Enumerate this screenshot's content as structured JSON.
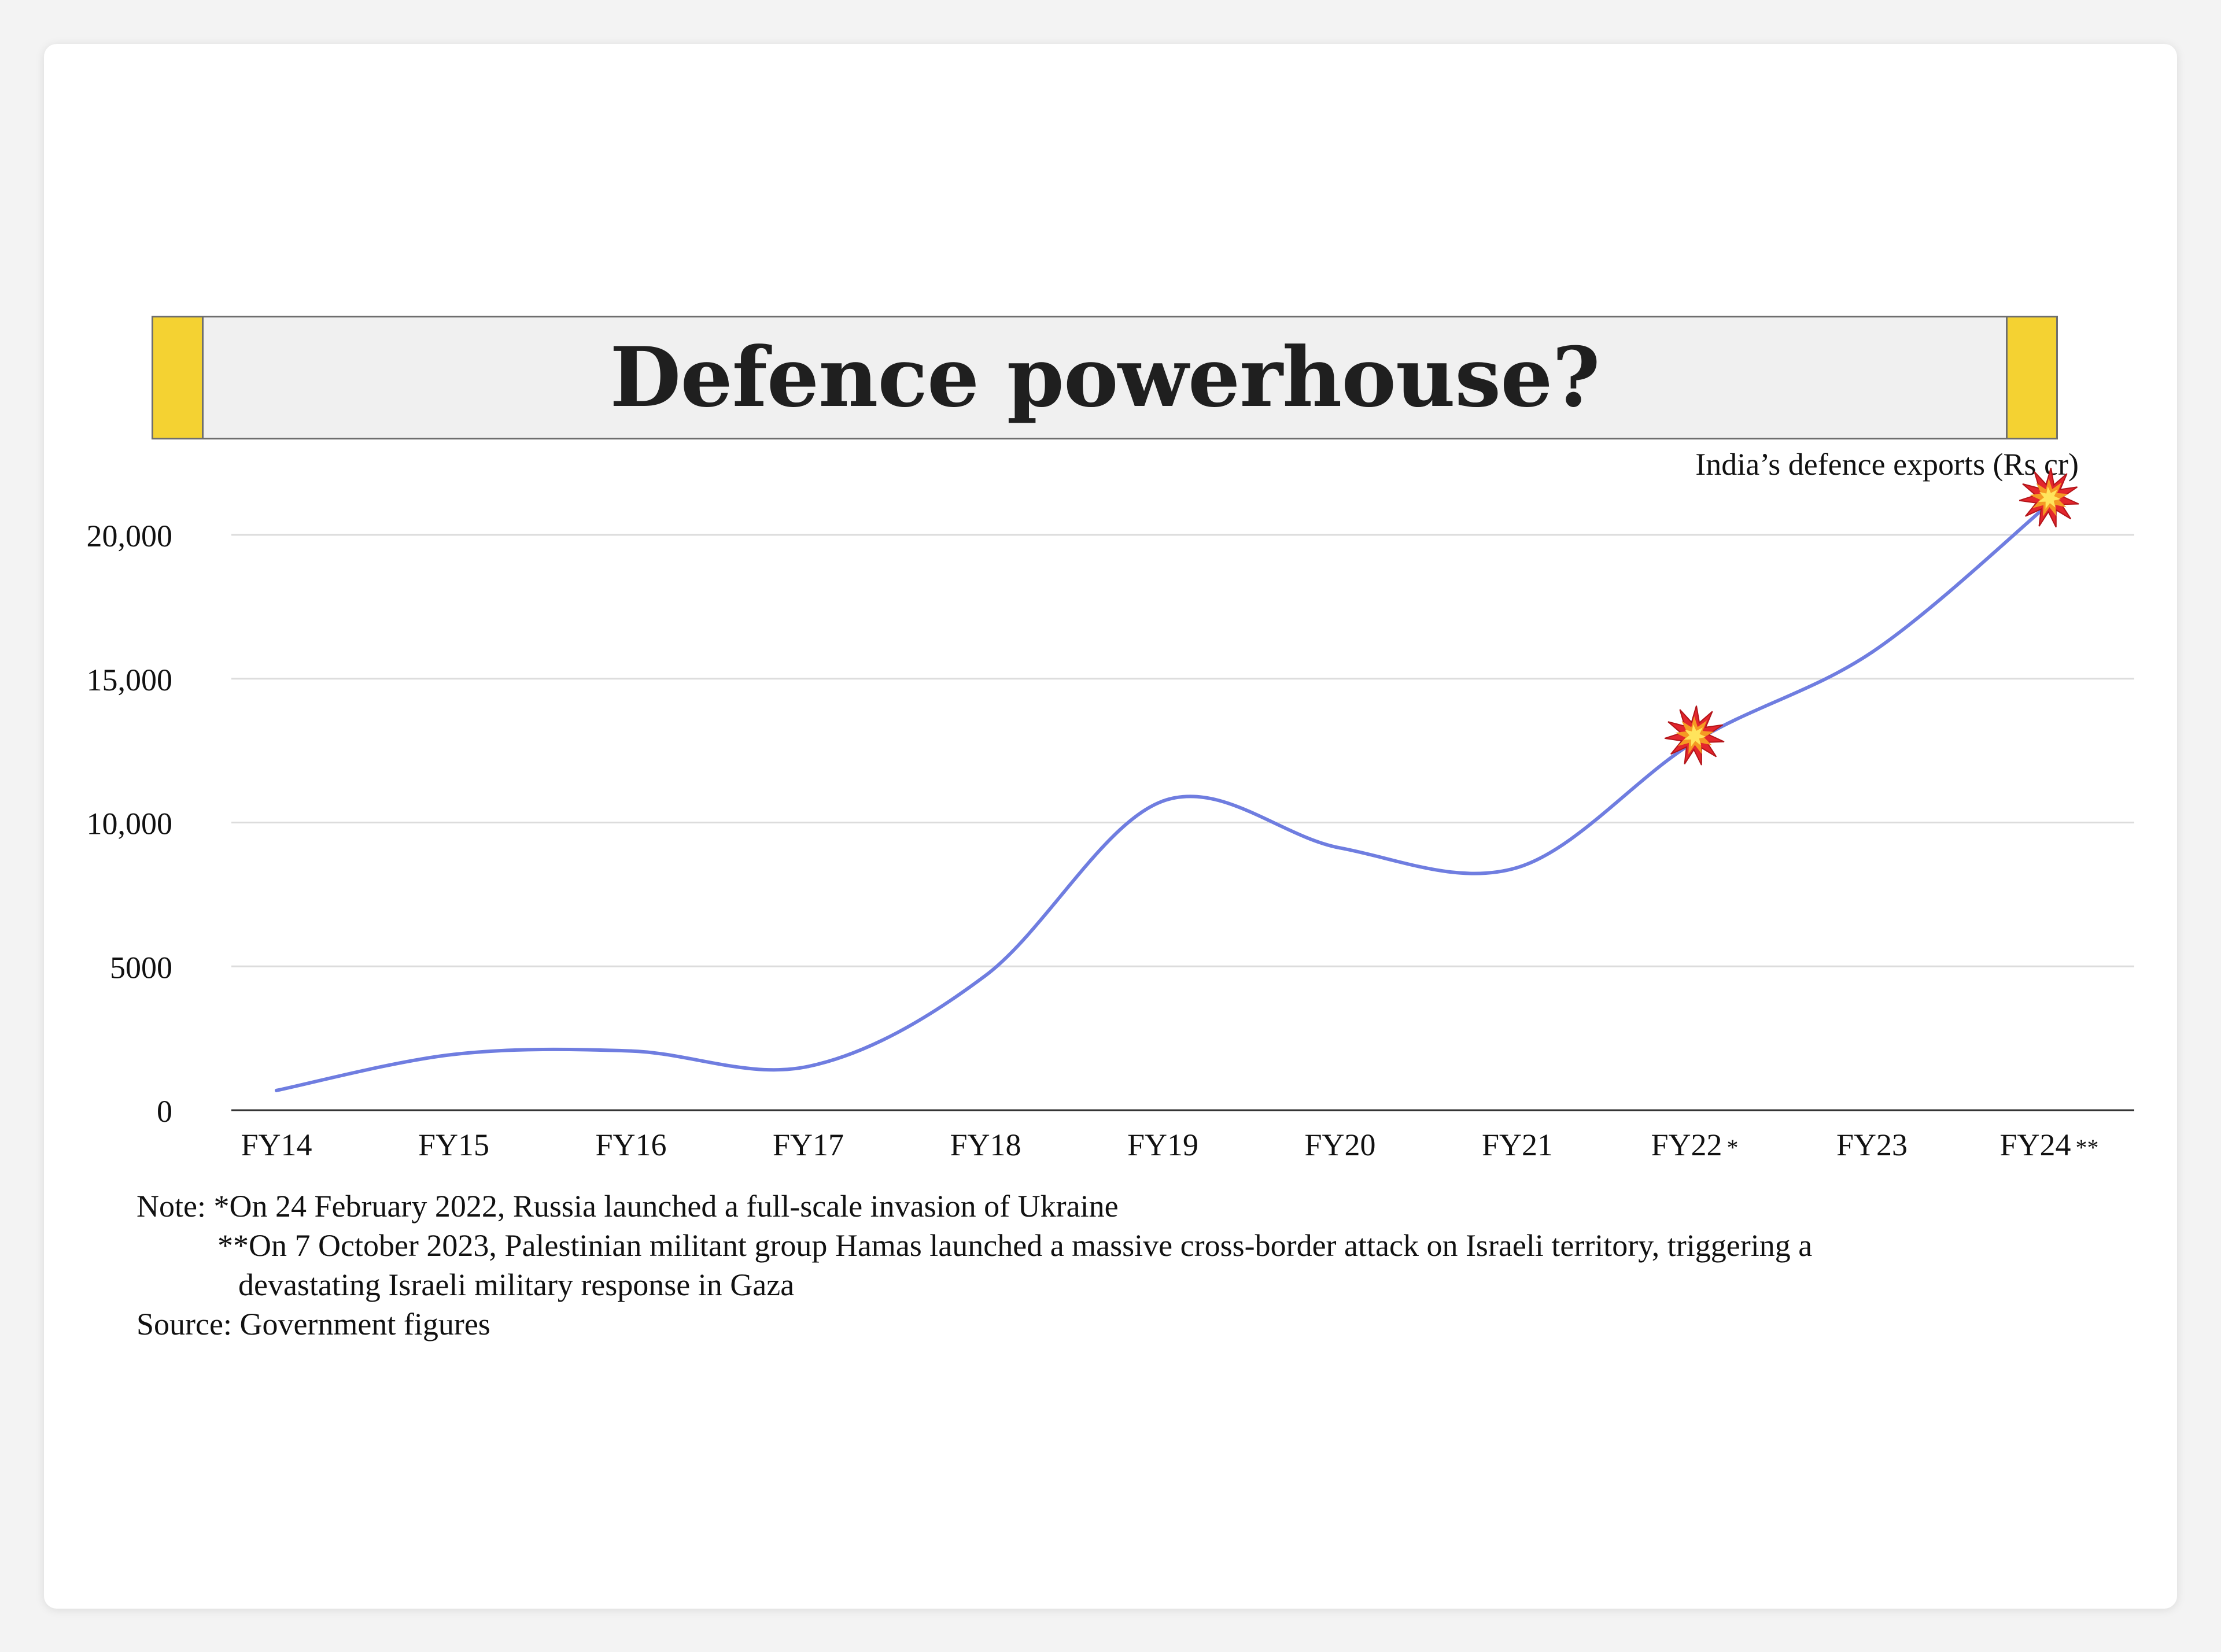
{
  "title": "Defence powerhouse?",
  "colors": {
    "line": "#6f7de0",
    "tab": "#f4d232",
    "grid": "#dcdcdc",
    "axis": "#333333"
  },
  "chart_data": {
    "type": "line",
    "title": "Defence powerhouse?",
    "ylabel": "India’s defence exports (Rs cr)",
    "xlabel": "",
    "categories": [
      "FY14",
      "FY15",
      "FY16",
      "FY17",
      "FY18",
      "FY19",
      "FY20",
      "FY21",
      "FY22",
      "FY23",
      "FY24"
    ],
    "category_suffixes": [
      "",
      "",
      "",
      "",
      "",
      "",
      "",
      "",
      "*",
      "",
      "**"
    ],
    "values": [
      686,
      1940,
      2059,
      1521,
      4682,
      10746,
      9116,
      8435,
      12815,
      15920,
      21083
    ],
    "yticks": [
      "0",
      "5000",
      "10,000",
      "15,000",
      "20,000"
    ],
    "ytick_values": [
      0,
      5000,
      10000,
      15000,
      20000
    ],
    "ylim": [
      0,
      20000
    ],
    "grid": true,
    "markers": [
      {
        "category": "FY22",
        "icon": "collision-icon"
      },
      {
        "category": "FY24",
        "icon": "collision-icon"
      }
    ]
  },
  "notes": {
    "line1": "Note: *On 24 February 2022, Russia launched a full-scale invasion of Ukraine",
    "line2": "**On 7 October 2023, Palestinian militant group Hamas launched a massive cross-border attack on Israeli territory, triggering a",
    "line3": "devastating Israeli military response in Gaza",
    "source": "Source: Government figures"
  }
}
